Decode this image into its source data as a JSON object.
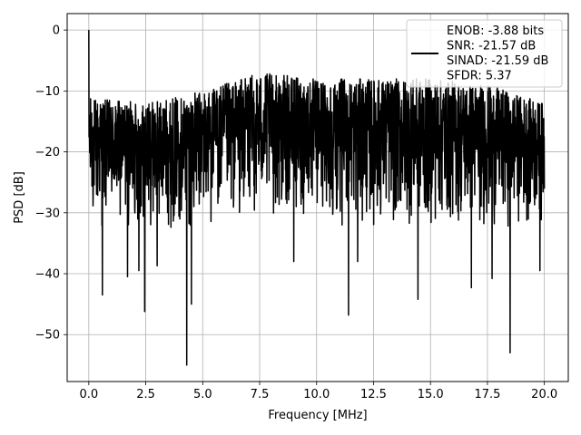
{
  "chart_data": {
    "type": "line",
    "title": "",
    "xlabel": "Frequency [MHz]",
    "ylabel": "PSD [dB]",
    "xlim": [
      -0.95,
      21.05
    ],
    "ylim": [
      -57.7,
      2.7
    ],
    "x_ticks": [
      0.0,
      2.5,
      5.0,
      7.5,
      10.0,
      12.5,
      15.0,
      17.5,
      20.0
    ],
    "x_tick_labels": [
      "0.0",
      "2.5",
      "5.0",
      "7.5",
      "10.0",
      "12.5",
      "15.0",
      "17.5",
      "20.0"
    ],
    "y_ticks": [
      0,
      -10,
      -20,
      -30,
      -40,
      -50
    ],
    "y_tick_labels": [
      "0",
      "−10",
      "−20",
      "−30",
      "−40",
      "−50"
    ],
    "grid": true,
    "legend_position": "top-right",
    "series": [
      {
        "name": "ENOB: -3.88 bits\nSNR: -21.57 dB\nSINAD: -21.59 dB\nSFDR: 5.37",
        "color": "#000000",
        "spectrum": {
          "x_start": 0.0,
          "x_end": 20.0,
          "points": 2048,
          "dc_value": 0.0,
          "noise_floor_mean": -20.0,
          "noise_envelope_top": [
            [
              0.0,
              -11
            ],
            [
              2.5,
              -12
            ],
            [
              5.0,
              -10
            ],
            [
              7.5,
              -7
            ],
            [
              10.0,
              -8
            ],
            [
              12.5,
              -8
            ],
            [
              15.0,
              -8
            ],
            [
              17.5,
              -9
            ],
            [
              20.0,
              -12
            ]
          ],
          "noise_envelope_bottom": [
            [
              0.0,
              -33
            ],
            [
              2.5,
              -33
            ],
            [
              5.0,
              -33
            ],
            [
              7.5,
              -31
            ],
            [
              10.0,
              -32
            ],
            [
              12.5,
              -33
            ],
            [
              15.0,
              -33
            ],
            [
              17.5,
              -33
            ],
            [
              20.0,
              -32
            ]
          ],
          "notable_dips": [
            [
              0.6,
              -43.5
            ],
            [
              1.7,
              -40.5
            ],
            [
              2.2,
              -39.5
            ],
            [
              2.45,
              -46.2
            ],
            [
              3.0,
              -38.7
            ],
            [
              4.3,
              -55.0
            ],
            [
              4.5,
              -45.0
            ],
            [
              9.0,
              -38.0
            ],
            [
              11.4,
              -46.8
            ],
            [
              11.8,
              -38.0
            ],
            [
              14.45,
              -44.2
            ],
            [
              16.8,
              -42.3
            ],
            [
              17.7,
              -40.8
            ],
            [
              18.5,
              -53.0
            ],
            [
              19.8,
              -39.5
            ]
          ]
        }
      }
    ]
  }
}
